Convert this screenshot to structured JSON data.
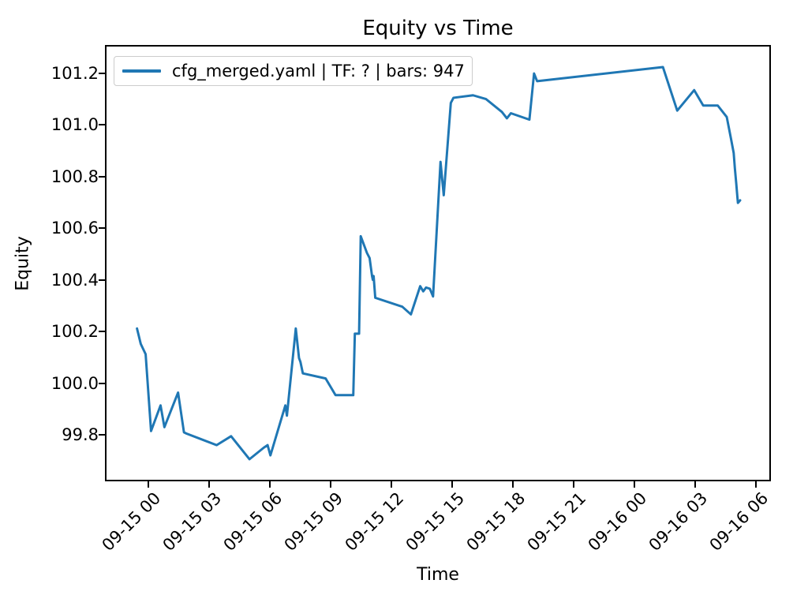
{
  "chart_data": {
    "type": "line",
    "title": "Equity vs Time",
    "xlabel": "Time",
    "ylabel": "Equity",
    "grid": false,
    "legend_position": "upper left",
    "line_color": "#1f77b4",
    "x_axis": {
      "unit": "hours since 09-15 00:00, labels are MM-DD HH",
      "tick_hours": [
        0,
        3,
        6,
        9,
        12,
        15,
        18,
        21,
        24,
        27,
        30
      ],
      "tick_labels": [
        "09-15 00",
        "09-15 03",
        "09-15 06",
        "09-15 09",
        "09-15 12",
        "09-15 15",
        "09-15 18",
        "09-15 21",
        "09-16 00",
        "09-16 03",
        "09-16 06"
      ],
      "range_hours": [
        -2.15,
        30.73
      ]
    },
    "y_axis": {
      "tick_values": [
        99.8,
        100.0,
        100.2,
        100.4,
        100.6,
        100.8,
        101.0,
        101.2
      ],
      "tick_labels": [
        "99.8",
        "100.0",
        "100.2",
        "100.4",
        "100.6",
        "100.8",
        "101.0",
        "101.2"
      ],
      "range": [
        99.62,
        101.31
      ]
    },
    "series": [
      {
        "name": "cfg_merged.yaml | TF: ? | bars: 947",
        "color": "#1f77b4",
        "points_t_hours_value": [
          [
            -0.64,
            100.21
          ],
          [
            -0.45,
            100.15
          ],
          [
            -0.21,
            100.11
          ],
          [
            0.06,
            99.81
          ],
          [
            0.53,
            99.91
          ],
          [
            0.72,
            99.825
          ],
          [
            1.4,
            99.96
          ],
          [
            1.69,
            99.805
          ],
          [
            1.82,
            99.8
          ],
          [
            3.31,
            99.755
          ],
          [
            4.03,
            99.79
          ],
          [
            4.94,
            99.7
          ],
          [
            5.65,
            99.745
          ],
          [
            5.84,
            99.755
          ],
          [
            5.98,
            99.715
          ],
          [
            6.72,
            99.91
          ],
          [
            6.8,
            99.87
          ],
          [
            7.24,
            100.21
          ],
          [
            7.4,
            100.095
          ],
          [
            7.47,
            100.08
          ],
          [
            7.59,
            100.035
          ],
          [
            8.72,
            100.015
          ],
          [
            9.21,
            99.95
          ],
          [
            10.09,
            99.95
          ],
          [
            10.17,
            100.19
          ],
          [
            10.38,
            100.19
          ],
          [
            10.46,
            100.57
          ],
          [
            10.77,
            100.505
          ],
          [
            10.9,
            100.485
          ],
          [
            11.02,
            100.415
          ],
          [
            11.06,
            100.4
          ],
          [
            11.1,
            100.415
          ],
          [
            11.18,
            100.33
          ],
          [
            12.52,
            100.295
          ],
          [
            12.95,
            100.265
          ],
          [
            13.41,
            100.375
          ],
          [
            13.56,
            100.355
          ],
          [
            13.7,
            100.37
          ],
          [
            13.89,
            100.365
          ],
          [
            14.05,
            100.335
          ],
          [
            14.42,
            100.86
          ],
          [
            14.58,
            100.73
          ],
          [
            14.93,
            101.09
          ],
          [
            15.06,
            101.11
          ],
          [
            16.03,
            101.12
          ],
          [
            16.68,
            101.105
          ],
          [
            17.46,
            101.055
          ],
          [
            17.71,
            101.03
          ],
          [
            17.91,
            101.05
          ],
          [
            18.83,
            101.025
          ],
          [
            19.06,
            101.205
          ],
          [
            19.21,
            101.175
          ],
          [
            25.45,
            101.23
          ],
          [
            26.16,
            101.06
          ],
          [
            27.0,
            101.14
          ],
          [
            27.45,
            101.08
          ],
          [
            28.17,
            101.08
          ],
          [
            28.62,
            101.035
          ],
          [
            28.83,
            100.95
          ],
          [
            28.96,
            100.895
          ],
          [
            29.02,
            100.835
          ],
          [
            29.09,
            100.775
          ],
          [
            29.15,
            100.72
          ],
          [
            29.17,
            100.7
          ],
          [
            29.28,
            100.71
          ]
        ]
      }
    ]
  }
}
